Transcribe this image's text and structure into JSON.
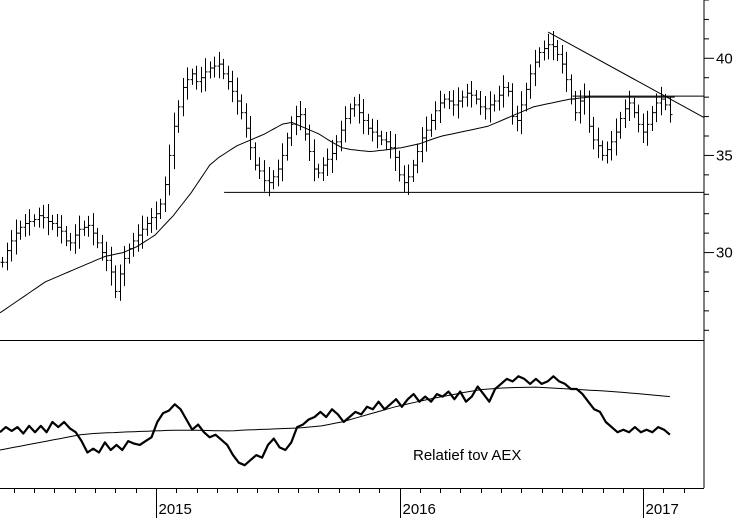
{
  "chart_data": [
    {
      "type": "ohlc",
      "panel": "price",
      "ylim": [
        25.5,
        43
      ],
      "y_ticks": [
        30,
        35,
        40
      ],
      "y_tick_labels": [
        "30",
        "35",
        "40"
      ],
      "x_range": [
        2014.36,
        2017.25
      ],
      "series": [
        {
          "style": "weekly-bars",
          "close": [
            29.5,
            30.1,
            30.6,
            31.0,
            31.3,
            31.5,
            31.6,
            31.7,
            31.9,
            31.8,
            31.6,
            31.5,
            31.3,
            31.1,
            30.6,
            30.5,
            30.9,
            31.2,
            31.3,
            31.4,
            31.0,
            30.5,
            30.0,
            29.6,
            29.0,
            28.0,
            28.9,
            29.7,
            30.2,
            30.6,
            30.9,
            31.2,
            31.5,
            31.8,
            32.0,
            32.5,
            33.5,
            35.0,
            36.5,
            37.5,
            38.5,
            38.9,
            39.2,
            38.8,
            39.0,
            39.3,
            39.5,
            39.6,
            39.7,
            39.2,
            38.8,
            38.3,
            37.8,
            37.2,
            36.4,
            35.4,
            34.5,
            34.2,
            33.7,
            33.6,
            33.9,
            34.3,
            35.0,
            35.9,
            36.6,
            37.0,
            37.1,
            36.1,
            35.2,
            34.3,
            34.1,
            34.5,
            34.8,
            35.1,
            35.7,
            36.3,
            36.9,
            37.4,
            37.6,
            37.2,
            36.8,
            36.4,
            36.2,
            36.0,
            35.8,
            35.7,
            35.4,
            34.9,
            34.0,
            33.6,
            33.9,
            34.5,
            35.2,
            35.9,
            36.3,
            36.8,
            37.3,
            37.7,
            37.9,
            37.8,
            37.6,
            37.8,
            38.0,
            38.2,
            38.1,
            37.9,
            37.5,
            37.4,
            37.6,
            37.8,
            38.1,
            38.5,
            38.3,
            37.0,
            36.8,
            37.6,
            38.4,
            39.2,
            39.8,
            40.3,
            40.5,
            40.7,
            40.6,
            40.2,
            39.7,
            38.9,
            37.9,
            37.2,
            37.8,
            38.0,
            36.5,
            35.8,
            35.5,
            35.0,
            35.3,
            35.7,
            36.2,
            36.9,
            37.4,
            37.7,
            37.2,
            36.6,
            36.2,
            36.6,
            37.2,
            37.7,
            37.9,
            37.6,
            37.1
          ]
        },
        {
          "style": "moving-average",
          "values": [
            26.9,
            27.06,
            27.22,
            27.38,
            27.54,
            27.7,
            27.86,
            28.02,
            28.18,
            28.34,
            28.5,
            28.6,
            28.7,
            28.8,
            28.9,
            29.0,
            29.1,
            29.2,
            29.3,
            29.4,
            29.5,
            29.6,
            29.7,
            29.8,
            29.85,
            29.9,
            29.95,
            30.0,
            30.1,
            30.2,
            30.3,
            30.45,
            30.6,
            30.75,
            30.9,
            31.15,
            31.4,
            31.65,
            31.9,
            32.2,
            32.5,
            32.8,
            33.1,
            33.45,
            33.8,
            34.15,
            34.5,
            34.7,
            34.9,
            35.05,
            35.2,
            35.35,
            35.5,
            35.6,
            35.7,
            35.8,
            35.9,
            36.0,
            36.1,
            36.23,
            36.36,
            36.49,
            36.62,
            36.66,
            36.7,
            36.6,
            36.5,
            36.4,
            36.3,
            36.2,
            36.1,
            35.95,
            35.8,
            35.66,
            35.53,
            35.4,
            35.35,
            35.3,
            35.28,
            35.25,
            35.23,
            35.2,
            35.22,
            35.25,
            35.27,
            35.3,
            35.33,
            35.37,
            35.4,
            35.45,
            35.5,
            35.55,
            35.6,
            35.68,
            35.77,
            35.85,
            35.93,
            36.0,
            36.05,
            36.1,
            36.15,
            36.2,
            36.25,
            36.3,
            36.35,
            36.4,
            36.45,
            36.5,
            36.6,
            36.7,
            36.8,
            36.9,
            37.0,
            37.1,
            37.2,
            37.3,
            37.4,
            37.5,
            37.55,
            37.6,
            37.65,
            37.7,
            37.75,
            37.8,
            37.85,
            37.9,
            37.92,
            37.95,
            37.97,
            38.0,
            38.0,
            38.0,
            38.0,
            38.0,
            38.0,
            38.0,
            38.0,
            38.0,
            38.0,
            38.0,
            38.0,
            38.0,
            38.0,
            38.0,
            38.0,
            38.0,
            38.0,
            38.0,
            38.0
          ]
        }
      ],
      "lines": [
        {
          "kind": "support",
          "y": 33.1,
          "x0": 2015.28,
          "x1": 2017.25
        },
        {
          "kind": "resistance",
          "y": 38.05,
          "x0": 2016.71,
          "x1": 2017.25
        },
        {
          "kind": "trendline",
          "from": [
            2016.61,
            41.35
          ],
          "to": [
            2017.25,
            36.95
          ]
        }
      ]
    },
    {
      "type": "line",
      "panel": "relative",
      "annotation": "Relatief tov AEX",
      "x_ticks": [
        2015,
        2016,
        2017
      ],
      "x_tick_labels": [
        "2015",
        "2016",
        "2017"
      ],
      "ylim": [
        0,
        100
      ],
      "series": [
        {
          "style": "thick",
          "values": [
            40,
            44,
            41,
            44,
            39,
            45,
            40,
            45,
            40,
            48,
            44,
            48,
            43,
            40,
            33,
            24,
            27,
            24,
            32,
            26,
            30,
            26,
            33,
            31,
            30,
            33,
            36,
            48,
            55,
            57,
            62,
            58,
            50,
            42,
            46,
            40,
            36,
            38,
            34,
            30,
            22,
            16,
            14,
            18,
            22,
            20,
            30,
            35,
            28,
            26,
            32,
            44,
            46,
            50,
            52,
            56,
            52,
            58,
            54,
            48,
            52,
            56,
            54,
            60,
            58,
            64,
            58,
            62,
            66,
            60,
            66,
            70,
            64,
            68,
            64,
            70,
            68,
            72,
            66,
            72,
            64,
            68,
            76,
            70,
            64,
            74,
            78,
            82,
            80,
            84,
            82,
            78,
            82,
            78,
            80,
            84,
            80,
            78,
            74,
            74,
            70,
            64,
            58,
            56,
            48,
            44,
            40,
            42,
            40,
            44,
            40,
            42,
            40,
            44,
            42,
            38
          ]
        },
        {
          "style": "thin",
          "values": [
            26,
            27,
            28,
            29,
            30,
            31,
            32,
            33,
            34,
            35,
            36,
            37,
            38,
            38.5,
            39,
            39.3,
            39.5,
            39.7,
            40,
            40.2,
            40.4,
            40.6,
            40.8,
            41,
            41.2,
            41.4,
            41.5,
            41.6,
            41.6,
            41.5,
            41.4,
            41.3,
            41.2,
            41.1,
            41,
            41.2,
            41.5,
            41.8,
            42,
            42.2,
            42.4,
            42.6,
            42.8,
            43,
            43.2,
            43.5,
            44,
            44.5,
            45,
            46,
            47,
            48,
            49.5,
            51,
            52.5,
            54,
            55.5,
            57,
            58.5,
            60,
            61.2,
            62.4,
            63.6,
            64.8,
            66,
            67,
            68,
            69,
            70,
            71,
            72,
            72.8,
            73.6,
            74,
            74.4,
            74.8,
            75,
            75.2,
            75.3,
            75.4,
            75.5,
            75.2,
            74.9,
            74.6,
            74.3,
            74,
            73.7,
            73.4,
            73.1,
            72.8,
            72.5,
            72.1,
            71.7,
            71.3,
            70.9,
            70.5,
            70,
            69.5,
            69,
            68.5,
            68
          ]
        }
      ]
    }
  ]
}
